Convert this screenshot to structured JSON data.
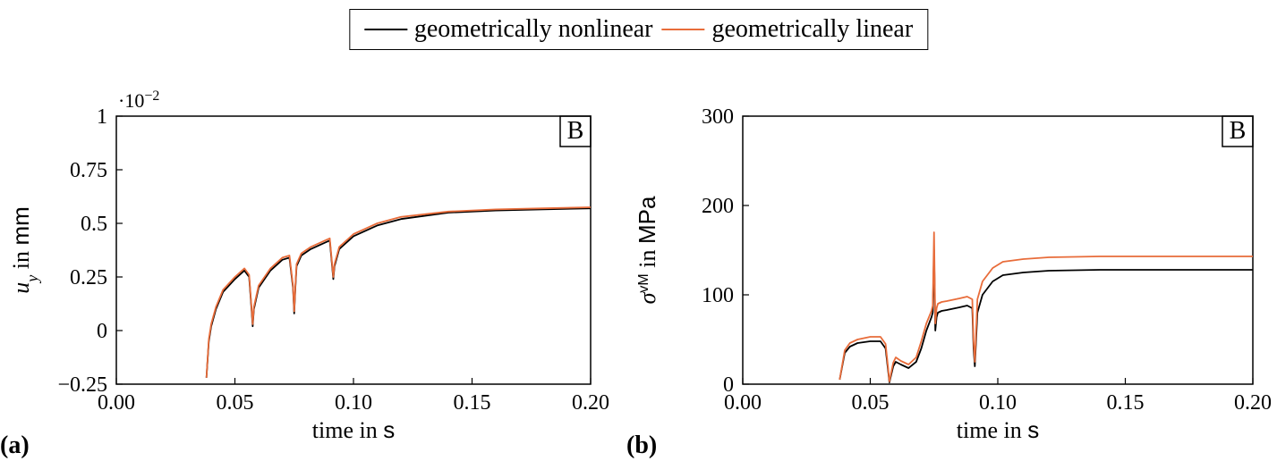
{
  "legend": {
    "items": [
      {
        "label": "geometrically nonlinear",
        "color": "#000000"
      },
      {
        "label": "geometrically linear",
        "color": "#e86c3a"
      }
    ],
    "border_color": "#000000",
    "background": "#ffffff"
  },
  "global": {
    "background_color": "#ffffff",
    "font_family": "Times New Roman",
    "tick_fontsize": 24,
    "label_fontsize": 26,
    "line_width": 1.8,
    "axis_color": "#000000"
  },
  "chart_a": {
    "type": "line",
    "sublabel": "(a)",
    "xlabel_prefix": "time in ",
    "xlabel_unit": "s",
    "ylabel_html": "u_y in mm",
    "y_exponent": "·10⁻²",
    "exponent_text": "·10",
    "exponent_sup": "−2",
    "xlim": [
      0.0,
      0.2
    ],
    "ylim": [
      -0.25,
      1.0
    ],
    "xticks": [
      0.0,
      0.05,
      0.1,
      0.15,
      0.2
    ],
    "xtick_labels": [
      "0.00",
      "0.05",
      "0.10",
      "0.15",
      "0.20"
    ],
    "yticks": [
      -0.25,
      0,
      0.25,
      0.5,
      0.75,
      1.0
    ],
    "ytick_labels": [
      "−0.25",
      "0",
      "0.25",
      "0.5",
      "0.75",
      "1"
    ],
    "corner_label": "B",
    "series": [
      {
        "name": "geometrically nonlinear",
        "color": "#000000",
        "x": [
          0.038,
          0.039,
          0.04,
          0.042,
          0.045,
          0.05,
          0.054,
          0.056,
          0.057,
          0.0575,
          0.058,
          0.06,
          0.065,
          0.07,
          0.073,
          0.0745,
          0.075,
          0.0755,
          0.076,
          0.078,
          0.082,
          0.088,
          0.09,
          0.091,
          0.0915,
          0.092,
          0.094,
          0.1,
          0.11,
          0.12,
          0.14,
          0.16,
          0.18,
          0.2
        ],
        "y": [
          -0.22,
          -0.05,
          0.02,
          0.1,
          0.18,
          0.24,
          0.28,
          0.25,
          0.1,
          0.02,
          0.1,
          0.2,
          0.28,
          0.33,
          0.34,
          0.2,
          0.08,
          0.2,
          0.3,
          0.35,
          0.38,
          0.41,
          0.42,
          0.3,
          0.24,
          0.3,
          0.38,
          0.44,
          0.49,
          0.52,
          0.55,
          0.56,
          0.565,
          0.57
        ]
      },
      {
        "name": "geometrically linear",
        "color": "#e86c3a",
        "x": [
          0.038,
          0.039,
          0.04,
          0.042,
          0.045,
          0.05,
          0.054,
          0.056,
          0.057,
          0.0575,
          0.058,
          0.06,
          0.065,
          0.07,
          0.073,
          0.0745,
          0.075,
          0.0755,
          0.076,
          0.078,
          0.082,
          0.088,
          0.09,
          0.091,
          0.0915,
          0.092,
          0.094,
          0.1,
          0.11,
          0.12,
          0.14,
          0.16,
          0.18,
          0.2
        ],
        "y": [
          -0.22,
          -0.04,
          0.03,
          0.11,
          0.19,
          0.25,
          0.29,
          0.26,
          0.11,
          0.03,
          0.11,
          0.21,
          0.29,
          0.34,
          0.35,
          0.21,
          0.09,
          0.21,
          0.31,
          0.36,
          0.39,
          0.42,
          0.43,
          0.31,
          0.25,
          0.31,
          0.39,
          0.45,
          0.5,
          0.53,
          0.555,
          0.565,
          0.57,
          0.575
        ]
      }
    ]
  },
  "chart_b": {
    "type": "line",
    "sublabel": "(b)",
    "xlabel_prefix": "time in ",
    "xlabel_unit": "s",
    "ylabel_html": "σ^vM in MPa",
    "xlim": [
      0.0,
      0.2
    ],
    "ylim": [
      0,
      300
    ],
    "xticks": [
      0.0,
      0.05,
      0.1,
      0.15,
      0.2
    ],
    "xtick_labels": [
      "0.00",
      "0.05",
      "0.10",
      "0.15",
      "0.20"
    ],
    "yticks": [
      0,
      100,
      200,
      300
    ],
    "ytick_labels": [
      "0",
      "100",
      "200",
      "300"
    ],
    "corner_label": "B",
    "series": [
      {
        "name": "geometrically nonlinear",
        "color": "#000000",
        "x": [
          0.038,
          0.04,
          0.042,
          0.045,
          0.05,
          0.054,
          0.056,
          0.057,
          0.0575,
          0.058,
          0.059,
          0.06,
          0.062,
          0.065,
          0.068,
          0.07,
          0.072,
          0.074,
          0.0745,
          0.075,
          0.0755,
          0.076,
          0.0765,
          0.078,
          0.08,
          0.085,
          0.088,
          0.09,
          0.0905,
          0.091,
          0.0915,
          0.092,
          0.094,
          0.098,
          0.102,
          0.11,
          0.12,
          0.14,
          0.16,
          0.18,
          0.2
        ],
        "y": [
          5,
          35,
          42,
          46,
          48,
          48,
          40,
          15,
          2,
          8,
          20,
          25,
          22,
          18,
          25,
          40,
          60,
          75,
          80,
          150,
          60,
          75,
          80,
          82,
          83,
          86,
          88,
          85,
          40,
          20,
          50,
          80,
          100,
          115,
          122,
          125,
          127,
          128,
          128,
          128,
          128
        ]
      },
      {
        "name": "geometrically linear",
        "color": "#e86c3a",
        "x": [
          0.038,
          0.04,
          0.042,
          0.045,
          0.05,
          0.054,
          0.056,
          0.057,
          0.0575,
          0.058,
          0.059,
          0.06,
          0.062,
          0.065,
          0.068,
          0.07,
          0.072,
          0.074,
          0.0745,
          0.075,
          0.0755,
          0.076,
          0.0765,
          0.078,
          0.08,
          0.085,
          0.088,
          0.09,
          0.0905,
          0.091,
          0.0915,
          0.092,
          0.094,
          0.098,
          0.102,
          0.11,
          0.12,
          0.14,
          0.16,
          0.18,
          0.2
        ],
        "y": [
          5,
          38,
          46,
          50,
          53,
          53,
          45,
          18,
          3,
          10,
          24,
          30,
          26,
          22,
          30,
          48,
          68,
          82,
          88,
          170,
          68,
          85,
          90,
          92,
          93,
          96,
          98,
          95,
          48,
          25,
          60,
          95,
          115,
          130,
          137,
          140,
          142,
          143,
          143,
          143,
          143
        ]
      }
    ]
  }
}
